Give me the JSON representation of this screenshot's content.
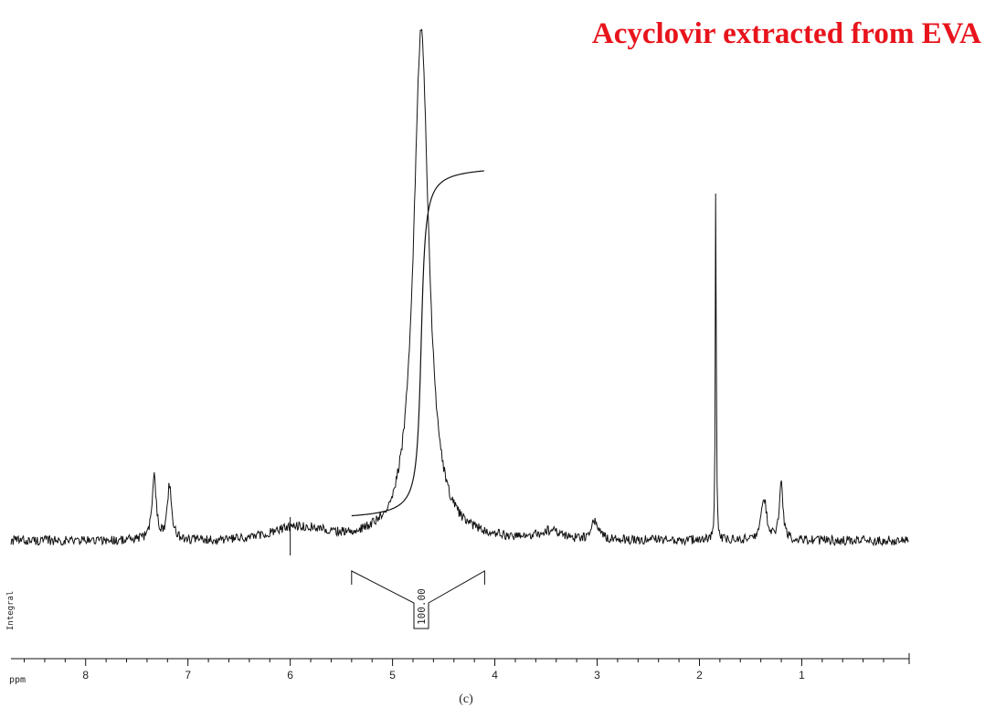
{
  "chart_data": {
    "type": "line",
    "title": "Acyclovir extracted from EVA",
    "title_color": "#e8141c",
    "xlabel": "ppm",
    "x_reversed": true,
    "xlim": [
      8.73,
      -0.05
    ],
    "x_ticks": [
      {
        "value": 8,
        "label": "8"
      },
      {
        "value": 7,
        "label": "7"
      },
      {
        "value": 6,
        "label": "6"
      },
      {
        "value": 5,
        "label": "5"
      },
      {
        "value": 4,
        "label": "4"
      },
      {
        "value": 3,
        "label": "3"
      },
      {
        "value": 2,
        "label": "2"
      },
      {
        "value": 1,
        "label": "1"
      }
    ],
    "x_minor_step": 0.2,
    "grid": false,
    "line_color": "#111111",
    "baseline_intensity": 0,
    "peaks": [
      {
        "ppm": 7.33,
        "intensity": 0.16,
        "width": 0.025
      },
      {
        "ppm": 7.18,
        "intensity": 0.14,
        "width": 0.025
      },
      {
        "ppm": 4.72,
        "intensity": 1.3,
        "width": 0.09
      },
      {
        "ppm": 3.02,
        "intensity": 0.05,
        "width": 0.04
      },
      {
        "ppm": 1.84,
        "intensity": 1.0,
        "width": 0.005
      },
      {
        "ppm": 1.37,
        "intensity": 0.11,
        "width": 0.03
      },
      {
        "ppm": 1.2,
        "intensity": 0.15,
        "width": 0.02
      }
    ],
    "humps": [
      {
        "ppm": 5.92,
        "intensity": 0.03,
        "width": 0.35
      },
      {
        "ppm": 3.45,
        "intensity": 0.02,
        "width": 0.15
      }
    ],
    "noise_amplitude": 0.012,
    "integral": {
      "label": "Integral",
      "region": [
        5.4,
        4.1
      ],
      "value": "100.00"
    },
    "marker_ppm": 6.0,
    "caption": "(c)"
  }
}
